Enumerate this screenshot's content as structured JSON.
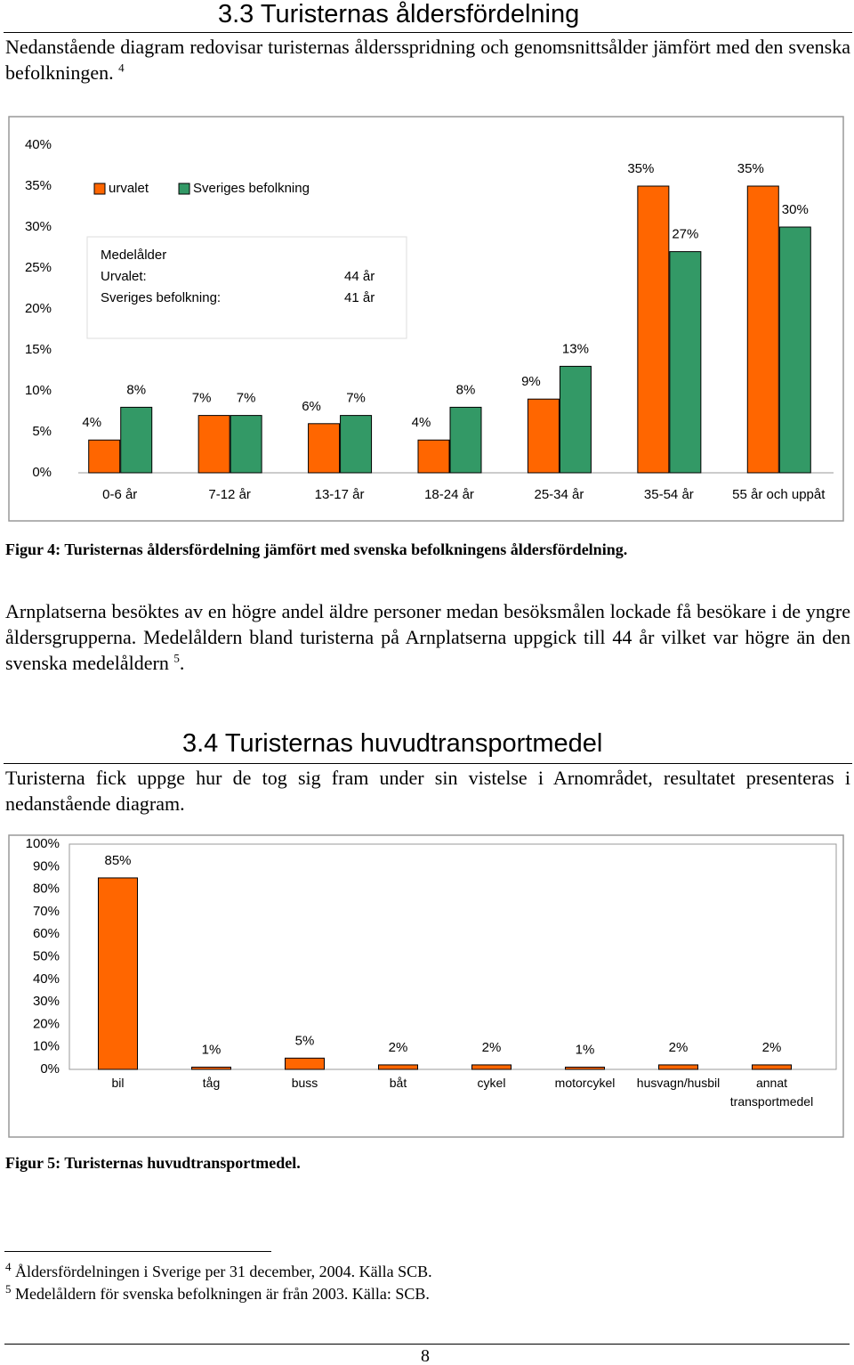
{
  "heading_1": "3.3 Turisternas åldersfördelning",
  "paragraph_1": {
    "text": "Nedanstående diagram redovisar turisternas åldersspridning och genomsnittsålder jämfört med den svenska befolkningen.",
    "note_ref": "4"
  },
  "figure_1_caption": "Figur 4: Turisternas åldersfördelning jämfört med svenska befolkningens åldersfördelning.",
  "paragraph_2": {
    "text": "Arnplatserna besöktes av en högre andel äldre personer medan besöksmålen lockade få besökare i de yngre åldersgrupperna. Medelåldern bland turisterna på Arnplatserna uppgick till 44 år vilket var högre än den svenska medelåldern",
    "note_ref": "5",
    "end": "."
  },
  "heading_2": "3.4 Turisternas huvudtransportmedel",
  "paragraph_3": "Turisterna fick uppge hur de tog sig fram under sin vistelse i Arnområdet, resultatet presenteras i nedanstående diagram.",
  "figure_2_caption": "Figur 5: Turisternas huvudtransportmedel.",
  "footnotes": [
    {
      "number": "4",
      "text": "Åldersfördelningen i Sverige per 31 december, 2004. Källa SCB."
    },
    {
      "number": "5",
      "text": "Medelåldern för svenska befolkningen är från 2003. Källa: SCB."
    }
  ],
  "page_number": "8",
  "chart_data": [
    {
      "type": "bar",
      "categories": [
        "0-6 år",
        "7-12 år",
        "13-17 år",
        "18-24 år",
        "25-34 år",
        "35-54 år",
        "55 år och uppåt"
      ],
      "series": [
        {
          "name": "urvalet",
          "color": "#ff6600",
          "values": [
            4,
            7,
            6,
            4,
            9,
            35,
            35
          ],
          "value_labels": [
            "4%",
            "7%",
            "6%",
            "4%",
            "9%",
            "35%",
            "35%"
          ]
        },
        {
          "name": "Sveriges befolkning",
          "color": "#339966",
          "values": [
            8,
            7,
            7,
            8,
            13,
            27,
            30
          ],
          "value_labels": [
            "8%",
            "7%",
            "7%",
            "8%",
            "13%",
            "27%",
            "30%"
          ]
        }
      ],
      "ylim": [
        0,
        40
      ],
      "yticks": [
        {
          "value": 0,
          "label": "0%"
        },
        {
          "value": 5,
          "label": "5%"
        },
        {
          "value": 10,
          "label": "10%"
        },
        {
          "value": 15,
          "label": "15%"
        },
        {
          "value": 20,
          "label": "20%"
        },
        {
          "value": 25,
          "label": "25%"
        },
        {
          "value": 30,
          "label": "30%"
        },
        {
          "value": 35,
          "label": "35%"
        },
        {
          "value": 40,
          "label": "40%"
        }
      ],
      "grid": false,
      "legend": "top-left",
      "annotation": {
        "title": "Medelålder",
        "rows": [
          {
            "label": "Urvalet:",
            "value": "44 år"
          },
          {
            "label": "Sveriges befolkning:",
            "value": "41 år"
          }
        ]
      }
    },
    {
      "type": "bar",
      "categories": [
        "bil",
        "tåg",
        "buss",
        "båt",
        "cykel",
        "motorcykel",
        "husvagn/husbil",
        "annat transportmedel"
      ],
      "values": [
        85,
        1,
        5,
        2,
        2,
        1,
        2,
        2
      ],
      "value_labels": [
        "85%",
        "1%",
        "5%",
        "2%",
        "2%",
        "1%",
        "2%",
        "2%"
      ],
      "color": "#ff6600",
      "ylim": [
        0,
        100
      ],
      "yticks": [
        {
          "value": 0,
          "label": "0%"
        },
        {
          "value": 10,
          "label": "10%"
        },
        {
          "value": 20,
          "label": "20%"
        },
        {
          "value": 30,
          "label": "30%"
        },
        {
          "value": 40,
          "label": "40%"
        },
        {
          "value": 50,
          "label": "50%"
        },
        {
          "value": 60,
          "label": "60%"
        },
        {
          "value": 70,
          "label": "70%"
        },
        {
          "value": 80,
          "label": "80%"
        },
        {
          "value": 90,
          "label": "90%"
        },
        {
          "value": 100,
          "label": "100%"
        }
      ],
      "grid": false
    }
  ]
}
